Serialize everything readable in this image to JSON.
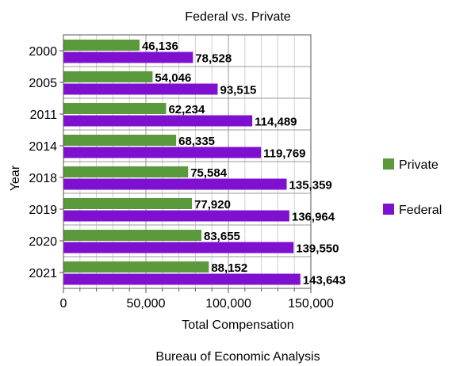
{
  "chart_data": {
    "type": "bar",
    "orientation": "horizontal",
    "title": "Federal vs. Private",
    "xlabel": "Total Compensation",
    "ylabel": "Year",
    "source": "Bureau of Economic Analysis",
    "categories": [
      "2000",
      "2005",
      "2011",
      "2014",
      "2018",
      "2019",
      "2020",
      "2021"
    ],
    "series": [
      {
        "name": "Private",
        "color": "#5a9a3c",
        "values": [
          46136,
          54046,
          62234,
          68335,
          75584,
          77920,
          83655,
          88152
        ],
        "labels": [
          "46,136",
          "54,046",
          "62,234",
          "68,335",
          "75,584",
          "77,920",
          "83,655",
          "88,152"
        ]
      },
      {
        "name": "Federal",
        "color": "#8010d0",
        "values": [
          78528,
          93515,
          114489,
          119769,
          135359,
          136964,
          139550,
          143643
        ],
        "labels": [
          "78,528",
          "93,515",
          "114,489",
          "119,769",
          "135,359",
          "136,964",
          "139,550",
          "143,643"
        ]
      }
    ],
    "xlim": [
      0,
      150000
    ],
    "xticks": [
      0,
      50000,
      100000,
      150000
    ],
    "xtick_labels": [
      "0",
      "50,000",
      "100,000",
      "150,000"
    ],
    "grid": true,
    "legend": "right"
  }
}
